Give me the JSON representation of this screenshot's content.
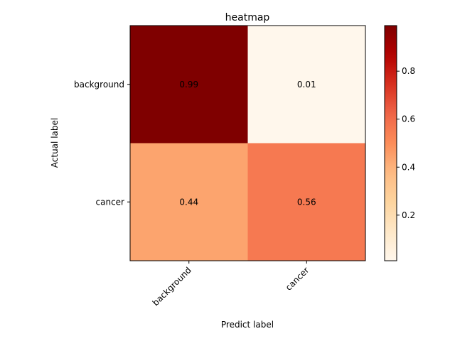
{
  "chart_data": {
    "type": "heatmap",
    "title": "heatmap",
    "xlabel": "Predict label",
    "ylabel": "Actual label",
    "x_categories": [
      "background",
      "cancer"
    ],
    "y_categories": [
      "background",
      "cancer"
    ],
    "values": [
      [
        0.99,
        0.01
      ],
      [
        0.44,
        0.56
      ]
    ],
    "colormap": "OrRd",
    "colorbar": {
      "range": [
        0.01,
        0.99
      ],
      "ticks": [
        0.2,
        0.4,
        0.6,
        0.8
      ],
      "tick_labels": [
        "0.2",
        "0.4",
        "0.6",
        "0.8"
      ]
    },
    "grid": false
  }
}
